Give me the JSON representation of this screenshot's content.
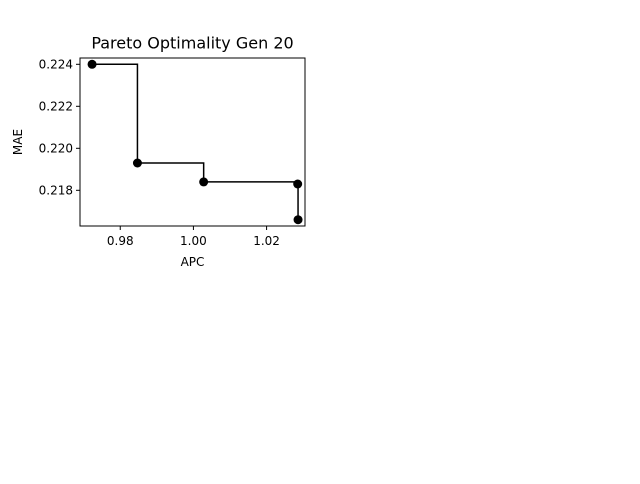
{
  "chart_data": {
    "type": "line",
    "title": "Pareto Optimality Gen 20",
    "xlabel": "APC",
    "ylabel": "MAE",
    "xlim": [
      0.969,
      1.0305
    ],
    "ylim": [
      0.2163,
      0.2243
    ],
    "xticks": [
      0.98,
      1.0,
      1.02
    ],
    "xtick_labels": [
      "0.98",
      "1.00",
      "1.02"
    ],
    "yticks": [
      0.218,
      0.22,
      0.222,
      0.224
    ],
    "ytick_labels": [
      "0.218",
      "0.220",
      "0.222",
      "0.224"
    ],
    "grid": false,
    "legend": "none",
    "line_style": "steps-post",
    "color": "#000000",
    "series": [
      {
        "x": [
          0.9723,
          0.9847,
          1.0028,
          1.0285,
          1.0286
        ],
        "y": [
          0.224,
          0.2193,
          0.2184,
          0.2183,
          0.2166
        ]
      }
    ]
  }
}
